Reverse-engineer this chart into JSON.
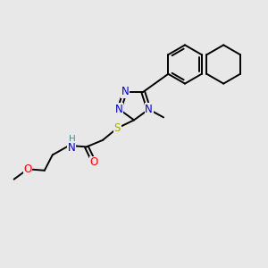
{
  "bg_color": "#e8e8e8",
  "atom_colors": {
    "N": "#0000dd",
    "S": "#aaaa00",
    "O": "#ff0000",
    "C": "#000000",
    "H": "#4a9090"
  },
  "font_size": 8.5,
  "fig_width": 3.0,
  "fig_height": 3.0,
  "dpi": 100,
  "lw": 1.4
}
